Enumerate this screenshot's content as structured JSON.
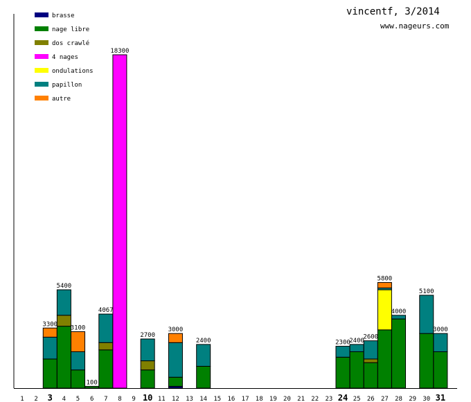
{
  "chart_data": {
    "type": "bar",
    "stacked": true,
    "title": "vincentf, 3/2014",
    "subtitle": "www.nageurs.com",
    "xlabel": "",
    "ylabel": "",
    "ylim": [
      0,
      18300
    ],
    "categories": [
      "1",
      "2",
      "3",
      "4",
      "5",
      "6",
      "7",
      "8",
      "9",
      "10",
      "11",
      "12",
      "13",
      "14",
      "15",
      "16",
      "17",
      "18",
      "19",
      "20",
      "21",
      "22",
      "23",
      "24",
      "25",
      "26",
      "27",
      "28",
      "29",
      "30",
      "31"
    ],
    "bold_categories": [
      "3",
      "10",
      "24",
      "31"
    ],
    "legend_placement": "top-left",
    "series": [
      {
        "name": "brasse",
        "color": "#000080",
        "values": [
          0,
          0,
          0,
          0,
          0,
          0,
          0,
          0,
          0,
          0,
          0,
          100,
          0,
          0,
          0,
          0,
          0,
          0,
          0,
          0,
          0,
          0,
          0,
          0,
          0,
          0,
          0,
          0,
          0,
          0,
          0
        ]
      },
      {
        "name": "nage libre",
        "color": "#008000",
        "values": [
          0,
          0,
          1600,
          3400,
          1000,
          100,
          2100,
          0,
          0,
          1000,
          0,
          500,
          0,
          1200,
          0,
          0,
          0,
          0,
          0,
          0,
          0,
          0,
          0,
          1700,
          2000,
          1400,
          3200,
          3800,
          0,
          3000,
          2000
        ]
      },
      {
        "name": "dos crawlé",
        "color": "#808000",
        "values": [
          0,
          0,
          0,
          600,
          0,
          0,
          400,
          0,
          0,
          500,
          0,
          0,
          0,
          0,
          0,
          0,
          0,
          0,
          0,
          0,
          0,
          0,
          0,
          0,
          0,
          200,
          0,
          0,
          0,
          0,
          0
        ]
      },
      {
        "name": "4 nages",
        "color": "#ff00ff",
        "values": [
          0,
          0,
          0,
          0,
          0,
          0,
          0,
          18300,
          0,
          0,
          0,
          0,
          0,
          0,
          0,
          0,
          0,
          0,
          0,
          0,
          0,
          0,
          0,
          0,
          0,
          0,
          0,
          0,
          0,
          0,
          0
        ]
      },
      {
        "name": "ondulations",
        "color": "#ffff00",
        "values": [
          0,
          0,
          0,
          0,
          0,
          0,
          0,
          0,
          0,
          0,
          0,
          0,
          0,
          0,
          0,
          0,
          0,
          0,
          0,
          0,
          0,
          0,
          0,
          0,
          0,
          0,
          2200,
          0,
          0,
          0,
          0
        ]
      },
      {
        "name": "papillon",
        "color": "#008080",
        "values": [
          0,
          0,
          1200,
          1400,
          1000,
          0,
          1567,
          0,
          0,
          1200,
          0,
          1900,
          0,
          1200,
          0,
          0,
          0,
          0,
          0,
          0,
          0,
          0,
          0,
          600,
          400,
          1000,
          100,
          200,
          0,
          2100,
          1000
        ]
      },
      {
        "name": "autre",
        "color": "#ff8000",
        "values": [
          0,
          0,
          500,
          0,
          1100,
          0,
          0,
          0,
          0,
          0,
          0,
          500,
          0,
          0,
          0,
          0,
          0,
          0,
          0,
          0,
          0,
          0,
          0,
          0,
          0,
          0,
          300,
          0,
          0,
          0,
          0
        ]
      }
    ],
    "totals": [
      "",
      "",
      "3300",
      "5400",
      "3100",
      "100",
      "4067",
      "18300",
      "",
      "2700",
      "",
      "3000",
      "",
      "2400",
      "",
      "",
      "",
      "",
      "",
      "",
      "",
      "",
      "",
      "2300",
      "2400",
      "2600",
      "5800",
      "4000",
      "",
      "5100",
      "3000"
    ]
  }
}
